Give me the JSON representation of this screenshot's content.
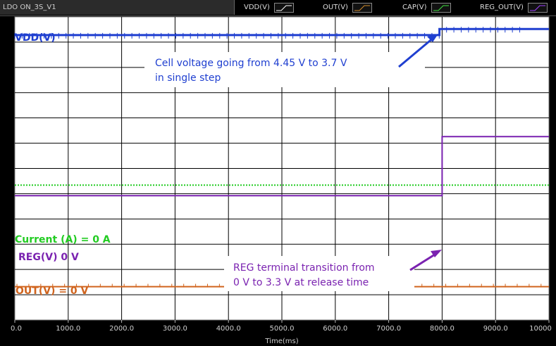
{
  "window": {
    "tab_title": "LDO ON_3S_V1"
  },
  "legend": [
    {
      "label": "VDD(V)",
      "color": "#ffffff"
    },
    {
      "label": "OUT(V)",
      "color": "#d08a2a"
    },
    {
      "label": "CAP(V)",
      "color": "#40e040"
    },
    {
      "label": "REG_OUT(V)",
      "color": "#a040ff"
    }
  ],
  "chart_data": {
    "type": "line",
    "xlabel": "Time(ms)",
    "xlim": [
      0,
      10000
    ],
    "xticks": [
      "0.0",
      "1000.0",
      "2000.0",
      "3000.0",
      "4000.0",
      "5000.0",
      "6000.0",
      "7000.0",
      "8000.0",
      "9000.0",
      "10000"
    ],
    "grid": true,
    "series": [
      {
        "name": "VDD(V)",
        "color": "#1f3fd0",
        "x": [
          0,
          7950,
          7950,
          10000
        ],
        "y_level": [
          0.94,
          0.94,
          0.96,
          0.96
        ]
      },
      {
        "name": "CAP(V)",
        "color": "#22cc22",
        "x": [
          0,
          10000
        ],
        "y_level": [
          0.445,
          0.445
        ]
      },
      {
        "name": "REG_OUT(V)",
        "color": "#7a22b0",
        "x": [
          0,
          8000,
          8000,
          10000
        ],
        "y_level": [
          0.41,
          0.41,
          0.605,
          0.605
        ]
      },
      {
        "name": "OUT(V)",
        "color": "#d0641e",
        "x": [
          0,
          10000
        ],
        "y_level": [
          0.11,
          0.11
        ]
      }
    ],
    "annotations": {
      "vdd": "VDD(V)",
      "current": "Current (A) = 0 A",
      "reg": "REG(V) 0 V",
      "out": "OUT(V) = 0 V",
      "callout1_line1": "Cell voltage going from 4.45 V to 3.7 V",
      "callout1_line2": "in single step",
      "callout2_line1": "REG terminal transition from",
      "callout2_line2": "0 V to 3.3 V at release time"
    }
  }
}
